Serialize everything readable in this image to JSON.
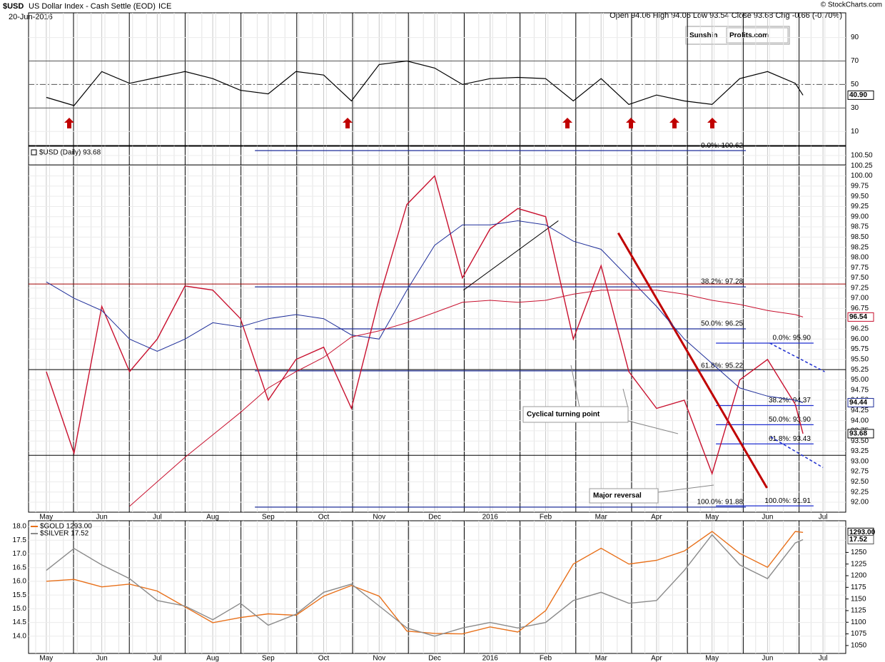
{
  "header": {
    "symbol": "$USD",
    "title": "US Dollar Index - Cash Settle (EOD)",
    "exchange": "ICE",
    "date": "20-Jun-2016",
    "quote": "Open 94.06 High 94.06 Low 93.54 Close 93.68 Chg -0.66 (-0.70%)",
    "credit": "© StockCharts.com",
    "logo_left": "Sunshin",
    "logo_right": "Profits.com",
    "annotations": [
      "Cyclical turning point",
      "Major reversal"
    ]
  },
  "chart_data": [
    {
      "type": "line",
      "x": [
        0,
        0.5,
        1,
        1.5,
        2,
        2.5,
        3,
        3.5,
        4,
        4.5,
        5,
        5.5,
        6,
        6.5,
        7,
        7.5,
        8,
        8.5,
        9,
        9.5,
        10,
        10.5,
        11,
        11.5,
        12,
        12.5,
        13,
        13.5,
        13.64
      ],
      "xlim": [
        -0.32,
        14.41
      ],
      "ylim": [
        -2,
        111
      ],
      "yticks": [
        10,
        30,
        50,
        70,
        90
      ],
      "levels": [
        30,
        70
      ],
      "midline": 50,
      "color": "#000000",
      "values": [
        39,
        32,
        61,
        51,
        56,
        61,
        55,
        45,
        42,
        61,
        58,
        36,
        67,
        70,
        64,
        50,
        55,
        56,
        55,
        36,
        55,
        33,
        41,
        36,
        33,
        55,
        61,
        51,
        40.9
      ],
      "last_label": "40.90"
    },
    {
      "type": "line",
      "title": "$USD (Daily) 93.68",
      "x": [
        0,
        0.5,
        1,
        1.5,
        2,
        2.5,
        3,
        3.5,
        4,
        4.5,
        5,
        5.5,
        6,
        6.5,
        7,
        7.5,
        8,
        8.5,
        9,
        9.5,
        10,
        10.5,
        11,
        11.5,
        12,
        12.5,
        13,
        13.5,
        13.64
      ],
      "xlim": [
        -0.32,
        14.41
      ],
      "ylim": [
        91.755,
        100.727
      ],
      "xticks": [
        {
          "value": 0,
          "label": "May"
        },
        {
          "value": 1,
          "label": "Jun"
        },
        {
          "value": 2,
          "label": "Jul"
        },
        {
          "value": 3,
          "label": "Aug"
        },
        {
          "value": 4,
          "label": "Sep"
        },
        {
          "value": 5,
          "label": "Oct"
        },
        {
          "value": 6,
          "label": "Nov"
        },
        {
          "value": 7,
          "label": "Dec"
        },
        {
          "value": 8,
          "label": "2016"
        },
        {
          "value": 9,
          "label": "Feb"
        },
        {
          "value": 10,
          "label": "Mar"
        },
        {
          "value": 11,
          "label": "Apr"
        },
        {
          "value": 12,
          "label": "May"
        },
        {
          "value": 13,
          "label": "Jun"
        },
        {
          "value": 14,
          "label": "Jul"
        }
      ],
      "yticks": [
        {
          "value": 92,
          "label": "92.00"
        },
        {
          "value": 92.25,
          "label": "92.25"
        },
        {
          "value": 92.5,
          "label": "92.50"
        },
        {
          "value": 92.75,
          "label": "92.75"
        },
        {
          "value": 93,
          "label": "93.00"
        },
        {
          "value": 93.25,
          "label": "93.25"
        },
        {
          "value": 93.5,
          "label": "93.50"
        },
        {
          "value": 93.75,
          "label": "93.75"
        },
        {
          "value": 94,
          "label": "94.00"
        },
        {
          "value": 94.25,
          "label": "94.25"
        },
        {
          "value": 94.5,
          "label": "94.50"
        },
        {
          "value": 94.75,
          "label": "94.75"
        },
        {
          "value": 95,
          "label": "95.00"
        },
        {
          "value": 95.25,
          "label": "95.25"
        },
        {
          "value": 95.5,
          "label": "95.50"
        },
        {
          "value": 95.75,
          "label": "95.75"
        },
        {
          "value": 96,
          "label": "96.00"
        },
        {
          "value": 96.25,
          "label": "96.25"
        },
        {
          "value": 96.5,
          "label": "96.50"
        },
        {
          "value": 96.75,
          "label": "96.75"
        },
        {
          "value": 97,
          "label": "97.00"
        },
        {
          "value": 97.25,
          "label": "97.25"
        },
        {
          "value": 97.5,
          "label": "97.50"
        },
        {
          "value": 97.75,
          "label": "97.75"
        },
        {
          "value": 98,
          "label": "98.00"
        },
        {
          "value": 98.25,
          "label": "98.25"
        },
        {
          "value": 98.5,
          "label": "98.50"
        },
        {
          "value": 98.75,
          "label": "98.75"
        },
        {
          "value": 99,
          "label": "99.00"
        },
        {
          "value": 99.25,
          "label": "99.25"
        },
        {
          "value": 99.5,
          "label": "99.50"
        },
        {
          "value": 99.75,
          "label": "99.75"
        },
        {
          "value": 100,
          "label": "100.00"
        },
        {
          "value": 100.25,
          "label": "100.25"
        },
        {
          "value": 100.5,
          "label": "100.50"
        }
      ],
      "series": [
        {
          "color": "#c8102e",
          "width": 1.4,
          "values": [
            95.2,
            93.2,
            96.8,
            95.2,
            96.0,
            97.3,
            97.2,
            96.5,
            94.5,
            95.5,
            95.8,
            94.3,
            97.0,
            99.3,
            100.0,
            97.5,
            98.7,
            99.2,
            99.0,
            96.0,
            97.8,
            95.2,
            94.3,
            94.5,
            92.7,
            95.0,
            95.5,
            94.4,
            93.68
          ]
        },
        {
          "color": "#1f2f9a",
          "width": 1,
          "values": [
            97.4,
            97.0,
            96.7,
            96.0,
            95.7,
            96.0,
            96.4,
            96.3,
            96.5,
            96.6,
            96.5,
            96.1,
            96.0,
            97.2,
            98.3,
            98.8,
            98.8,
            98.9,
            98.8,
            98.4,
            98.2,
            97.5,
            96.8,
            96.0,
            95.4,
            94.8,
            94.6,
            94.5,
            94.44
          ]
        },
        {
          "color": "#c8102e",
          "width": 1,
          "values": [
            null,
            null,
            null,
            91.9,
            92.5,
            93.1,
            93.65,
            94.2,
            94.8,
            95.2,
            95.55,
            96.05,
            96.2,
            96.4,
            96.65,
            96.9,
            96.95,
            96.9,
            96.95,
            97.1,
            97.2,
            97.2,
            97.2,
            97.1,
            96.95,
            96.85,
            96.7,
            96.6,
            96.54
          ]
        }
      ],
      "hlines": [
        {
          "value": 97.35,
          "color": "#a00000"
        },
        {
          "value": 95.25,
          "color": "#000000"
        },
        {
          "value": 93.15,
          "color": "#000000"
        },
        {
          "value": 100.27,
          "color": "#000000"
        }
      ],
      "fib_long": {
        "xrange": [
          3.76,
          12.61
        ],
        "color": "#1f2f9a",
        "levels": [
          {
            "value": 100.62,
            "label": "0.0%: 100.62"
          },
          {
            "value": 97.28,
            "label": "38.2%: 97.28"
          },
          {
            "value": 96.25,
            "label": "50.0%: 96.25"
          },
          {
            "value": 95.22,
            "label": "61.8%: 95.22"
          },
          {
            "value": 91.88,
            "label": "100.0%: 91.88"
          }
        ]
      },
      "fib_short": {
        "xrange": [
          12.07,
          13.83
        ],
        "color": "#1f2fd0",
        "levels": [
          {
            "value": 95.9,
            "label": "0.0%: 95.90"
          },
          {
            "value": 94.37,
            "label": "38.2%: 94.37"
          },
          {
            "value": 93.9,
            "label": "50.0%: 93.90"
          },
          {
            "value": 93.43,
            "label": "61.8%: 93.43"
          },
          {
            "value": 91.91,
            "label": "100.0%: 91.91"
          }
        ]
      },
      "trendlines": [
        {
          "points": [
            [
              10.31,
              98.6
            ],
            [
              12.99,
              92.35
            ]
          ],
          "color": "#c00000",
          "width": 3,
          "dash": false
        },
        {
          "points": [
            [
              7.52,
              97.2
            ],
            [
              9.23,
              98.9
            ]
          ],
          "color": "#000000",
          "width": 1,
          "dash": false
        },
        {
          "points": [
            [
              13.04,
              95.9
            ],
            [
              14.03,
              95.2
            ]
          ],
          "color": "#1f2fd0",
          "width": 1.5,
          "dash": true
        },
        {
          "points": [
            [
              13.06,
              93.6
            ],
            [
              14.0,
              92.85
            ]
          ],
          "color": "#1f2fd0",
          "width": 1.5,
          "dash": true
        }
      ],
      "price_labels": [
        {
          "value": 96.54,
          "label": "96.54",
          "color": "#c8102e"
        },
        {
          "value": 94.44,
          "label": "94.44",
          "color": "#1f2f9a"
        },
        {
          "value": 93.68,
          "label": "93.68",
          "color": "#000000"
        }
      ]
    },
    {
      "type": "line",
      "x": [
        0,
        0.5,
        1,
        1.5,
        2,
        2.5,
        3,
        3.5,
        4,
        4.5,
        5,
        5.5,
        6,
        6.5,
        7,
        7.5,
        8,
        8.5,
        9,
        9.5,
        10,
        10.5,
        11,
        11.5,
        12,
        12.5,
        13,
        13.5,
        13.64
      ],
      "xlim": [
        -0.32,
        14.41
      ],
      "ylim": [
        13.37,
        18.21
      ],
      "y2lim": [
        1033,
        1318
      ],
      "xticks": [
        {
          "value": 0,
          "label": "May"
        },
        {
          "value": 1,
          "label": "Jun"
        },
        {
          "value": 2,
          "label": "Jul"
        },
        {
          "value": 3,
          "label": "Aug"
        },
        {
          "value": 4,
          "label": "Sep"
        },
        {
          "value": 5,
          "label": "Oct"
        },
        {
          "value": 6,
          "label": "Nov"
        },
        {
          "value": 7,
          "label": "Dec"
        },
        {
          "value": 8,
          "label": "2016"
        },
        {
          "value": 9,
          "label": "Feb"
        },
        {
          "value": 10,
          "label": "Mar"
        },
        {
          "value": 11,
          "label": "Apr"
        },
        {
          "value": 12,
          "label": "May"
        },
        {
          "value": 13,
          "label": "Jun"
        },
        {
          "value": 14,
          "label": "Jul"
        }
      ],
      "yticks": [
        {
          "value": 14,
          "label": "14.0"
        },
        {
          "value": 14.5,
          "label": "14.5"
        },
        {
          "value": 15,
          "label": "15.0"
        },
        {
          "value": 15.5,
          "label": "15.5"
        },
        {
          "value": 16,
          "label": "16.0"
        },
        {
          "value": 16.5,
          "label": "16.5"
        },
        {
          "value": 17,
          "label": "17.0"
        },
        {
          "value": 17.5,
          "label": "17.5"
        },
        {
          "value": 18,
          "label": "18.0"
        }
      ],
      "y2ticks": [
        1050,
        1075,
        1100,
        1125,
        1150,
        1175,
        1200,
        1225,
        1250
      ],
      "series": [
        {
          "name": "$GOLD 1293.00",
          "color": "#e8701a",
          "axis": "y2",
          "last_label": "1293.00",
          "values": [
            1188,
            1192,
            1176,
            1182,
            1167,
            1133,
            1099,
            1110,
            1118,
            1115,
            1156,
            1179,
            1156,
            1081,
            1076,
            1075,
            1090,
            1079,
            1125,
            1225,
            1259,
            1225,
            1233,
            1253,
            1295,
            1248,
            1218,
            1295,
            1293
          ]
        },
        {
          "name": "$SILVER 17.52",
          "color": "#8a8a8a",
          "last_label": "17.52",
          "values": [
            16.4,
            17.2,
            16.6,
            16.1,
            15.3,
            15.1,
            14.6,
            15.2,
            14.4,
            14.8,
            15.6,
            15.9,
            15.1,
            14.3,
            14.0,
            14.3,
            14.5,
            14.3,
            14.5,
            15.3,
            15.6,
            15.2,
            15.3,
            16.4,
            17.7,
            16.6,
            16.1,
            17.4,
            17.52
          ]
        }
      ]
    }
  ]
}
